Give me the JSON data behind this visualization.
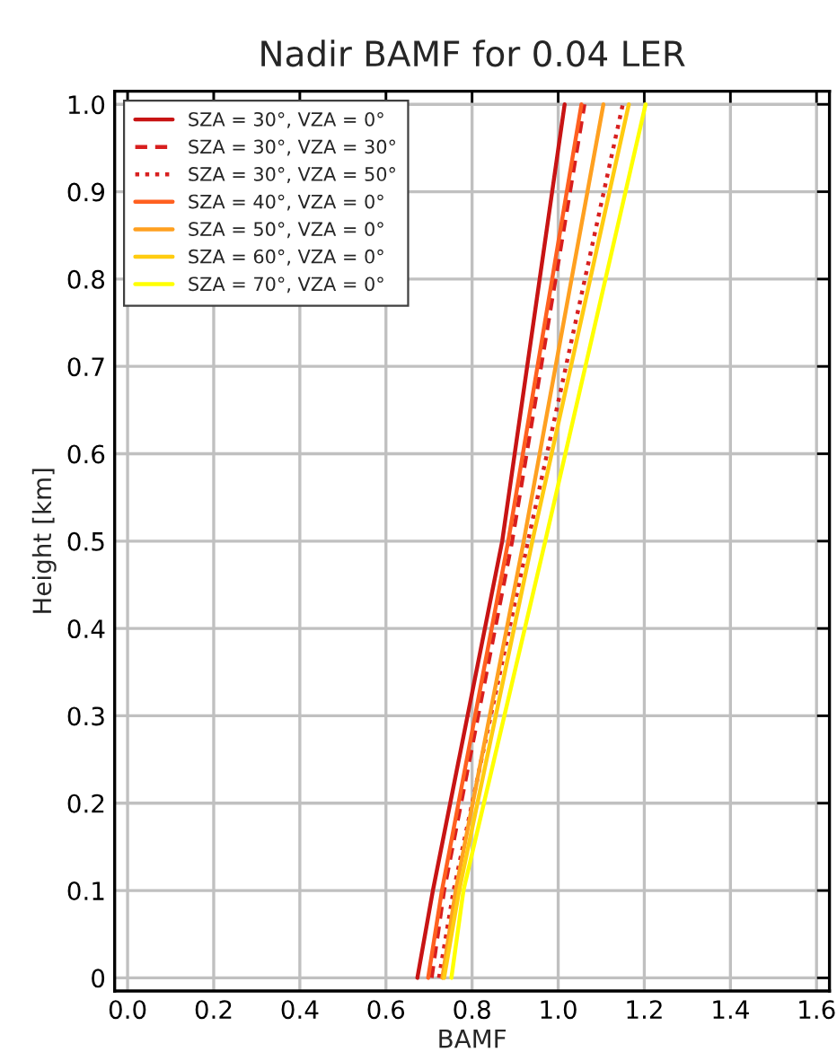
{
  "chart_data": {
    "type": "line",
    "title": "Nadir BAMF for 0.04 LER",
    "xlabel": "BAMF",
    "ylabel": "Height [km]",
    "series": [
      {
        "name": "SZA = 30°, VZA = 0°",
        "color": "#c81414",
        "line_style": "solid",
        "x": [
          0.673,
          0.709,
          0.87,
          1.015
        ],
        "values": [
          0,
          0.1,
          0.5,
          1.0
        ]
      },
      {
        "name": "SZA = 30°, VZA = 30°",
        "color": "#d81e1e",
        "line_style": "dashed",
        "x": [
          0.706,
          0.735,
          0.893,
          1.061
        ],
        "values": [
          0,
          0.1,
          0.5,
          1.0
        ]
      },
      {
        "name": "SZA = 30°, VZA = 50°",
        "color": "#d82020",
        "line_style": "dotted",
        "x": [
          0.723,
          0.757,
          0.93,
          1.15
        ],
        "values": [
          0,
          0.1,
          0.5,
          1.0
        ]
      },
      {
        "name": "SZA = 40°, VZA = 0°",
        "color": "#ff6020",
        "line_style": "solid",
        "x": [
          0.698,
          0.73,
          0.884,
          1.054
        ],
        "values": [
          0,
          0.1,
          0.5,
          1.0
        ]
      },
      {
        "name": "SZA = 50°, VZA = 0°",
        "color": "#ffa020",
        "line_style": "solid",
        "x": [
          0.731,
          0.762,
          0.92,
          1.105
        ],
        "values": [
          0,
          0.1,
          0.5,
          1.0
        ]
      },
      {
        "name": "SZA = 60°, VZA = 0°",
        "color": "#ffcc10",
        "line_style": "solid",
        "x": [
          0.735,
          0.77,
          0.94,
          1.164
        ],
        "values": [
          0,
          0.1,
          0.5,
          1.0
        ]
      },
      {
        "name": "SZA = 70°, VZA = 0°",
        "color": "#ffff00",
        "line_style": "solid",
        "x": [
          0.752,
          0.78,
          0.97,
          1.203
        ],
        "values": [
          0,
          0.1,
          0.5,
          1.0
        ]
      }
    ],
    "xlim": [
      -0.03,
      1.63
    ],
    "ylim": [
      -0.015,
      1.015
    ],
    "xticks": [
      {
        "value": 0,
        "label": "0.0"
      },
      0.2,
      0.4,
      0.6,
      0.8,
      {
        "value": 1,
        "label": "1.0"
      },
      1.2,
      1.4,
      1.6
    ],
    "yticks": [
      0,
      0.1,
      0.2,
      0.3,
      0.4,
      0.5,
      0.6,
      0.7,
      0.8,
      0.9,
      {
        "value": 1,
        "label": "1.0"
      }
    ],
    "grid": true,
    "legend": "top left"
  }
}
